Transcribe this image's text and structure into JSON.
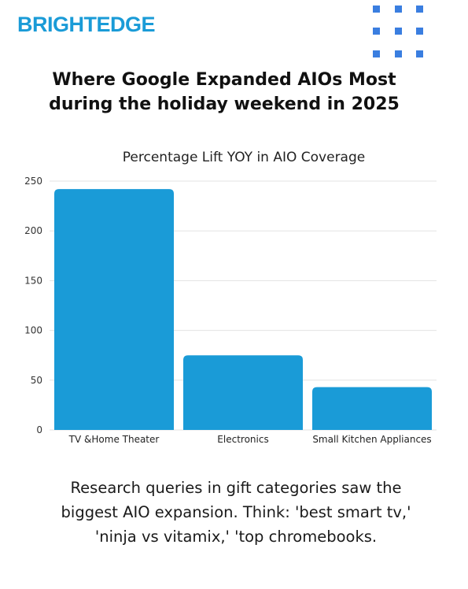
{
  "brand": {
    "name": "BRIGHTEDGE",
    "color": "#1a9bd7",
    "dots_color": "#3a7ee0"
  },
  "heading": {
    "line1": "Where Google Expanded AIOs Most",
    "line2": "during the holiday weekend in 2025"
  },
  "caption": {
    "line1": "Research queries in gift categories saw the",
    "line2": "biggest AIO expansion. Think: 'best smart tv,'",
    "line3": "'ninja vs vitamix,' 'top chromebooks."
  },
  "chart_data": {
    "type": "bar",
    "title": "Percentage Lift YOY in AIO Coverage",
    "xlabel": "",
    "ylabel": "",
    "categories": [
      "TV &Home Theater",
      "Electronics",
      "Small Kitchen Appliances"
    ],
    "values": [
      242,
      75,
      43
    ],
    "ylim": [
      0,
      250
    ],
    "yticks": [
      0,
      50,
      100,
      150,
      200,
      250
    ],
    "grid": true,
    "legend": "none",
    "bar_color": "#1a9bd7"
  }
}
